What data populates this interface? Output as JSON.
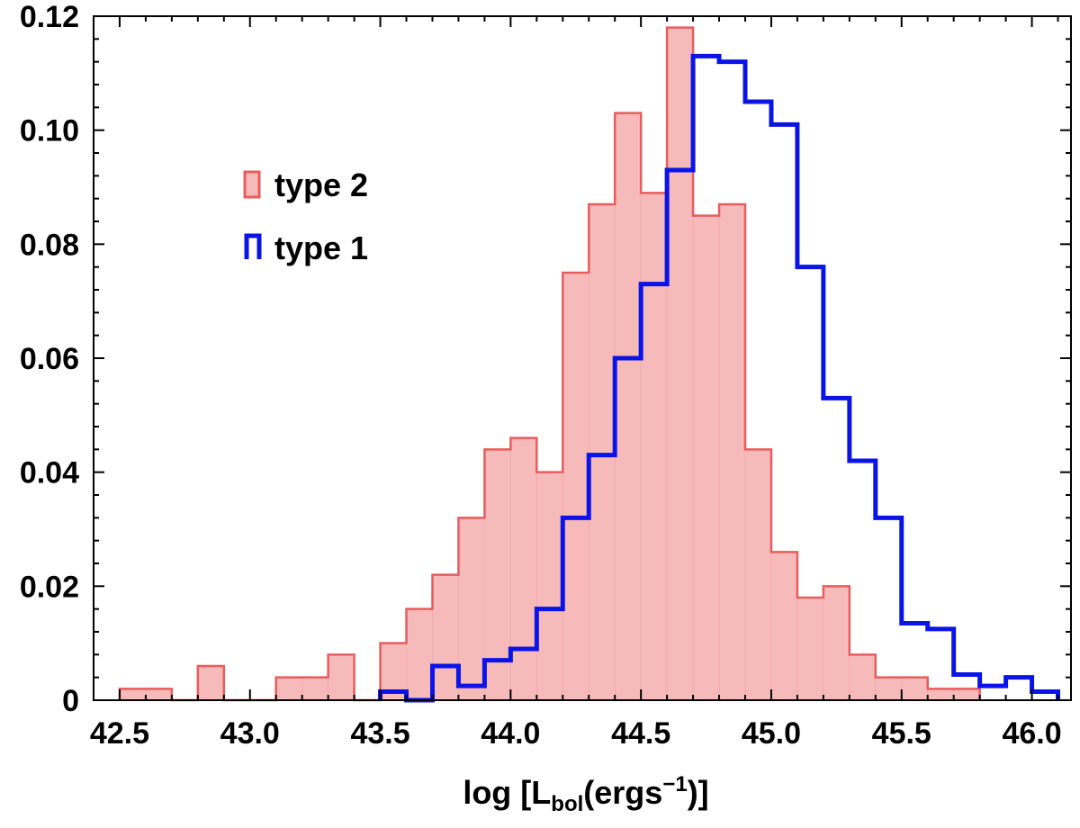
{
  "chart_data": {
    "type": "histogram",
    "xlabel": {
      "prefix": "log [L",
      "sub": "bol",
      "mid": "(ergs",
      "sup": "−1",
      "suffix": ")]"
    },
    "ylabel": "",
    "xlim": [
      42.4,
      46.15
    ],
    "ylim": [
      0,
      0.12
    ],
    "x_ticks": [
      42.5,
      43.0,
      43.5,
      44.0,
      44.5,
      45.0,
      45.5,
      46.0
    ],
    "x_tick_labels": [
      "42.5",
      "43.0",
      "43.5",
      "44.0",
      "44.5",
      "45.0",
      "45.5",
      "46.0"
    ],
    "y_ticks": [
      0,
      0.02,
      0.04,
      0.06,
      0.08,
      0.1,
      0.12
    ],
    "y_tick_labels": [
      "0",
      "0.02",
      "0.04",
      "0.06",
      "0.08",
      "0.10",
      "0.12"
    ],
    "bin_width": 0.1,
    "series": [
      {
        "name": "type 2",
        "style": "filled",
        "color": "#e85c5c",
        "fill": "#f7baba",
        "bin_starts": [
          42.5,
          42.6,
          42.8,
          43.1,
          43.2,
          43.3,
          43.5,
          43.6,
          43.7,
          43.8,
          43.9,
          44.0,
          44.1,
          44.2,
          44.3,
          44.4,
          44.5,
          44.6,
          44.7,
          44.8,
          44.9,
          45.0,
          45.1,
          45.2,
          45.3,
          45.4,
          45.5,
          45.6,
          45.7
        ],
        "values": [
          0.002,
          0.002,
          0.006,
          0.004,
          0.004,
          0.008,
          0.01,
          0.016,
          0.022,
          0.032,
          0.044,
          0.046,
          0.04,
          0.075,
          0.087,
          0.103,
          0.089,
          0.118,
          0.085,
          0.087,
          0.044,
          0.026,
          0.018,
          0.02,
          0.008,
          0.004,
          0.004,
          0.002,
          0.002
        ]
      },
      {
        "name": "type 1",
        "style": "step",
        "color": "#0a14e6",
        "bin_starts": [
          43.5,
          43.6,
          43.7,
          43.8,
          43.9,
          44.0,
          44.1,
          44.2,
          44.3,
          44.4,
          44.5,
          44.6,
          44.7,
          44.8,
          44.9,
          45.0,
          45.1,
          45.2,
          45.3,
          45.4,
          45.5,
          45.6,
          45.7,
          45.8,
          45.9,
          46.0
        ],
        "values": [
          0.0015,
          0.0,
          0.006,
          0.0025,
          0.007,
          0.009,
          0.016,
          0.032,
          0.043,
          0.06,
          0.073,
          0.093,
          0.113,
          0.112,
          0.105,
          0.101,
          0.076,
          0.053,
          0.042,
          0.032,
          0.0135,
          0.0125,
          0.0045,
          0.0025,
          0.004,
          0.0015
        ]
      }
    ],
    "legend": {
      "placement": "upper-left",
      "entries": [
        "type 2",
        "type 1"
      ]
    }
  }
}
